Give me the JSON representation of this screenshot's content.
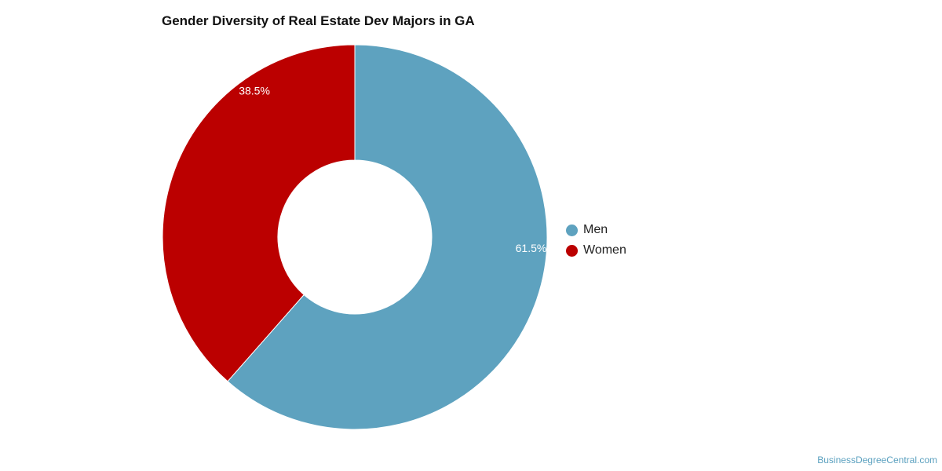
{
  "chart_data": {
    "type": "pie",
    "title": "Gender Diversity of Real Estate Dev Majors in GA",
    "donut": true,
    "legend_position": "right",
    "slices": [
      {
        "label": "Men",
        "value": 61.5,
        "value_label": "61.5%",
        "color": "#5ea2bf"
      },
      {
        "label": "Women",
        "value": 38.5,
        "value_label": "38.5%",
        "color": "#bb0000"
      }
    ]
  },
  "watermark": "BusinessDegreeCentral.com"
}
